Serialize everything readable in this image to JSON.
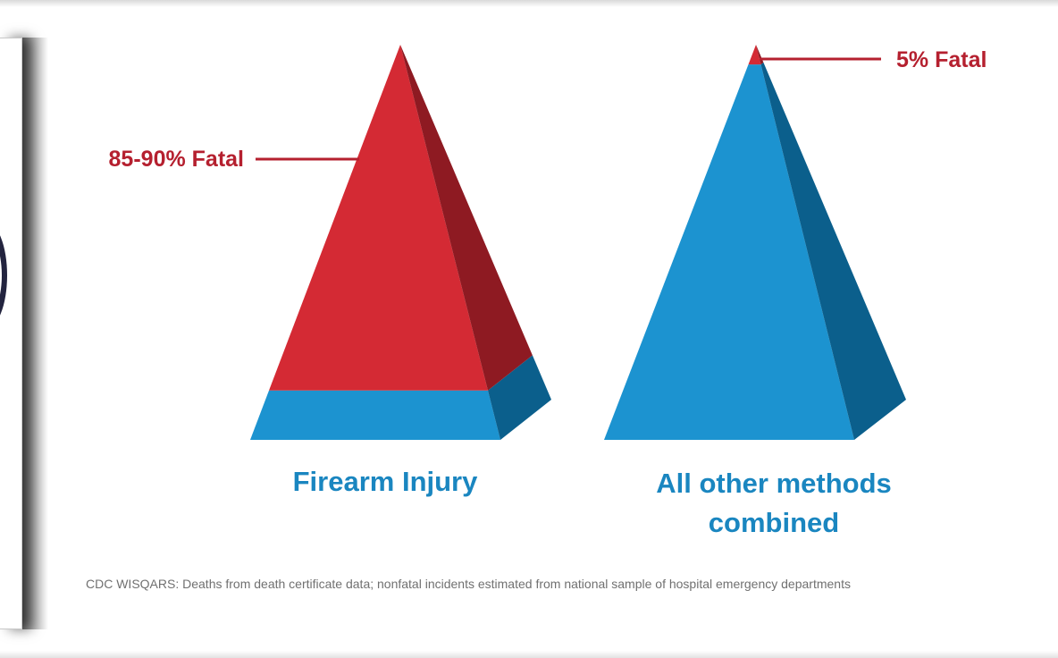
{
  "chart_data": {
    "type": "pyramid",
    "categories": [
      "Firearm Injury",
      "All other methods combined"
    ],
    "series": [
      {
        "category": "Firearm Injury",
        "fatal_label": "85-90% Fatal",
        "fatal_fraction": 0.875,
        "colors": {
          "fatal": "#d42a34",
          "fatal_dark": "#8e1a22",
          "nonfatal": "#1c93d0",
          "nonfatal_dark": "#0b5f8c"
        }
      },
      {
        "category": "All other methods combined",
        "fatal_label": "5% Fatal",
        "fatal_fraction": 0.05,
        "colors": {
          "fatal": "#d42a34",
          "fatal_dark": "#8e1a22",
          "nonfatal": "#1c93d0",
          "nonfatal_dark": "#0b5f8c"
        }
      }
    ],
    "category_labels": [
      [
        "Firearm Injury"
      ],
      [
        "All other methods",
        "combined"
      ]
    ],
    "source_note": "CDC WISQARS: Deaths from death certificate data; nonfatal incidents estimated from national sample of hospital emergency departments"
  }
}
